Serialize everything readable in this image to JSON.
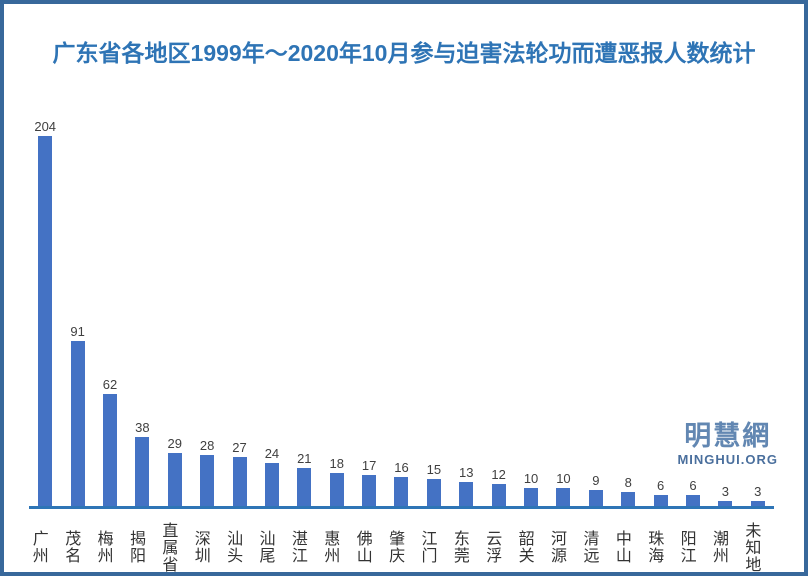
{
  "title": "广东省各地区1999年～2020年10月参与迫害法轮功而遭恶报人数统计",
  "watermark": {
    "cn": "明慧網",
    "en": "MINGHUI.ORG"
  },
  "colors": {
    "frame_border": "#38689B",
    "title_text": "#2E74B5",
    "bar_fill": "#4472C4",
    "axis_line": "#2E75B6",
    "value_label": "#404040",
    "category_label": "#333333",
    "watermark_cn": "#6287B2",
    "watermark_en": "#4A6F9D",
    "background": "#FFFFFF"
  },
  "chart_data": {
    "type": "bar",
    "title": "广东省各地区1999年～2020年10月参与迫害法轮功而遭恶报人数统计",
    "categories": [
      "广州",
      "茂名",
      "梅州",
      "揭阳",
      "直属省",
      "深圳",
      "汕头",
      "汕尾",
      "湛江",
      "惠州",
      "佛山",
      "肇庆",
      "江门",
      "东莞",
      "云浮",
      "韶关",
      "河源",
      "清远",
      "中山",
      "珠海",
      "阳江",
      "潮州",
      "未知地"
    ],
    "values": [
      204,
      91,
      62,
      38,
      29,
      28,
      27,
      24,
      21,
      18,
      17,
      16,
      15,
      13,
      12,
      10,
      10,
      9,
      8,
      6,
      6,
      3,
      3
    ],
    "xlabel": "",
    "ylabel": "",
    "ylim": [
      0,
      204
    ],
    "grid": false,
    "legend": "none",
    "value_labels": true,
    "category_label_orientation": "vertical"
  }
}
